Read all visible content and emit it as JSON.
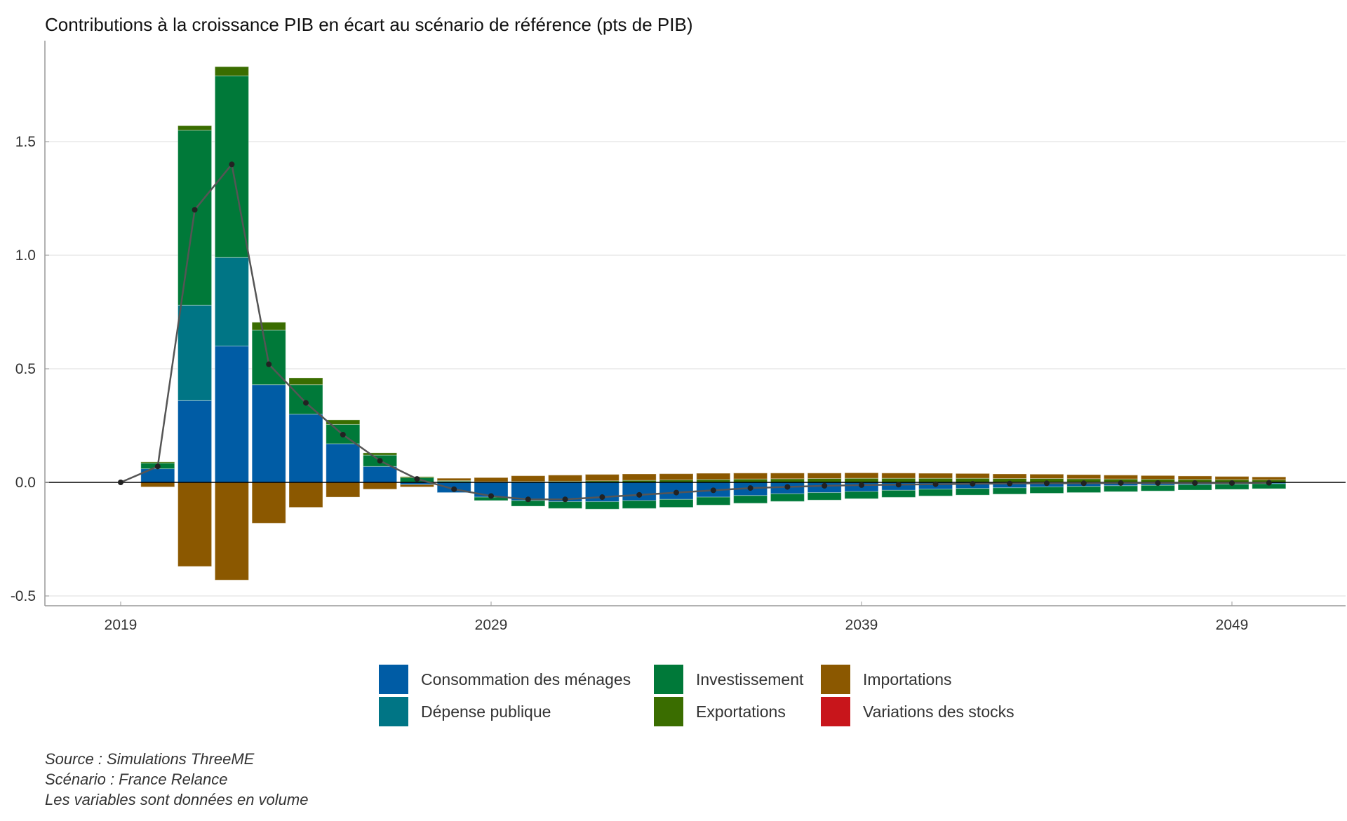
{
  "chart_data": {
    "type": "bar",
    "stacked": true,
    "title": "Contributions à la croissance PIB en écart au scénario de référence (pts de PIB)",
    "xlabel": "",
    "ylabel": "",
    "ylim": [
      -0.54,
      1.95
    ],
    "yticks": [
      -0.5,
      0.0,
      0.5,
      1.0,
      1.5
    ],
    "ytick_labels": [
      "-0.5",
      "0.0",
      "0.5",
      "1.0",
      "1.5"
    ],
    "xticks": [
      2019,
      2029,
      2039,
      2049
    ],
    "xtick_labels": [
      "2019",
      "2029",
      "2039",
      "2049"
    ],
    "grid": true,
    "legend_position": "bottom",
    "x": [
      2019,
      2020,
      2021,
      2022,
      2023,
      2024,
      2025,
      2026,
      2027,
      2028,
      2029,
      2030,
      2031,
      2032,
      2033,
      2034,
      2035,
      2036,
      2037,
      2038,
      2039,
      2040,
      2041,
      2042,
      2043,
      2044,
      2045,
      2046,
      2047,
      2048,
      2049,
      2050
    ],
    "series": [
      {
        "name": "Consommation des ménages",
        "color": "#005ca5",
        "values": [
          0,
          0.06,
          0.36,
          0.6,
          0.43,
          0.3,
          0.17,
          0.07,
          -0.01,
          -0.045,
          -0.065,
          -0.08,
          -0.085,
          -0.085,
          -0.08,
          -0.075,
          -0.065,
          -0.058,
          -0.05,
          -0.045,
          -0.04,
          -0.035,
          -0.03,
          -0.027,
          -0.024,
          -0.02,
          -0.018,
          -0.015,
          -0.013,
          -0.01,
          -0.008,
          -0.006
        ]
      },
      {
        "name": "Dépense publique",
        "color": "#007585",
        "values": [
          0,
          0,
          0.42,
          0.39,
          0,
          0,
          0,
          0,
          0,
          0,
          0,
          0,
          0,
          0,
          0,
          0,
          0,
          0,
          0,
          0,
          0,
          0,
          0,
          0,
          0,
          0,
          0,
          0,
          0,
          0,
          0,
          0
        ]
      },
      {
        "name": "Investissement",
        "color": "#007939",
        "values": [
          0,
          0.025,
          0.77,
          0.8,
          0.24,
          0.13,
          0.085,
          0.05,
          0.02,
          0.005,
          -0.015,
          -0.025,
          -0.03,
          -0.033,
          -0.035,
          -0.035,
          -0.035,
          -0.034,
          -0.034,
          -0.033,
          -0.032,
          -0.031,
          -0.03,
          -0.029,
          -0.028,
          -0.028,
          -0.027,
          -0.026,
          -0.025,
          -0.024,
          -0.023,
          -0.022
        ]
      },
      {
        "name": "Exportations",
        "color": "#3a6d00",
        "values": [
          0,
          0.005,
          0.02,
          0.04,
          0.035,
          0.03,
          0.02,
          0.01,
          0.005,
          0.003,
          0.003,
          0.004,
          0.005,
          0.007,
          0.009,
          0.011,
          0.013,
          0.015,
          0.016,
          0.017,
          0.018,
          0.018,
          0.018,
          0.018,
          0.017,
          0.017,
          0.016,
          0.015,
          0.014,
          0.013,
          0.012,
          0.011
        ]
      },
      {
        "name": "Importations",
        "color": "#8b5800",
        "values": [
          0,
          -0.02,
          -0.37,
          -0.43,
          -0.18,
          -0.11,
          -0.065,
          -0.03,
          -0.01,
          0.01,
          0.018,
          0.025,
          0.027,
          0.028,
          0.028,
          0.027,
          0.027,
          0.026,
          0.025,
          0.024,
          0.024,
          0.023,
          0.022,
          0.021,
          0.02,
          0.019,
          0.018,
          0.017,
          0.016,
          0.015,
          0.014,
          0.013
        ]
      },
      {
        "name": "Variations des stocks",
        "color": "#c8151b",
        "values": [
          0,
          0,
          0,
          0,
          0,
          0,
          0,
          0,
          0,
          0,
          0,
          0,
          0,
          0,
          0,
          0,
          0,
          0,
          0,
          0,
          0,
          0,
          0,
          0,
          0,
          0,
          0,
          0,
          0,
          0,
          0,
          0
        ]
      }
    ],
    "line": {
      "name": "PIB",
      "color": "#555555",
      "values": [
        0,
        0.07,
        1.2,
        1.4,
        0.52,
        0.35,
        0.21,
        0.095,
        0.015,
        -0.03,
        -0.06,
        -0.075,
        -0.075,
        -0.065,
        -0.055,
        -0.045,
        -0.035,
        -0.025,
        -0.02,
        -0.015,
        -0.012,
        -0.01,
        -0.008,
        -0.006,
        -0.005,
        -0.004,
        -0.004,
        -0.003,
        -0.003,
        -0.003,
        -0.003,
        -0.002
      ]
    }
  },
  "legend": {
    "items": [
      {
        "label": "Consommation des ménages",
        "color": "#005ca5"
      },
      {
        "label": "Dépense publique",
        "color": "#007585"
      },
      {
        "label": "Investissement",
        "color": "#007939"
      },
      {
        "label": "Exportations",
        "color": "#3a6d00"
      },
      {
        "label": "Importations",
        "color": "#8b5800"
      },
      {
        "label": "Variations des stocks",
        "color": "#c8151b"
      }
    ]
  },
  "notes": {
    "source": "Source : Simulations ThreeME",
    "scenario": "Scénario : France Relance",
    "volume": "Les variables sont données en volume"
  }
}
